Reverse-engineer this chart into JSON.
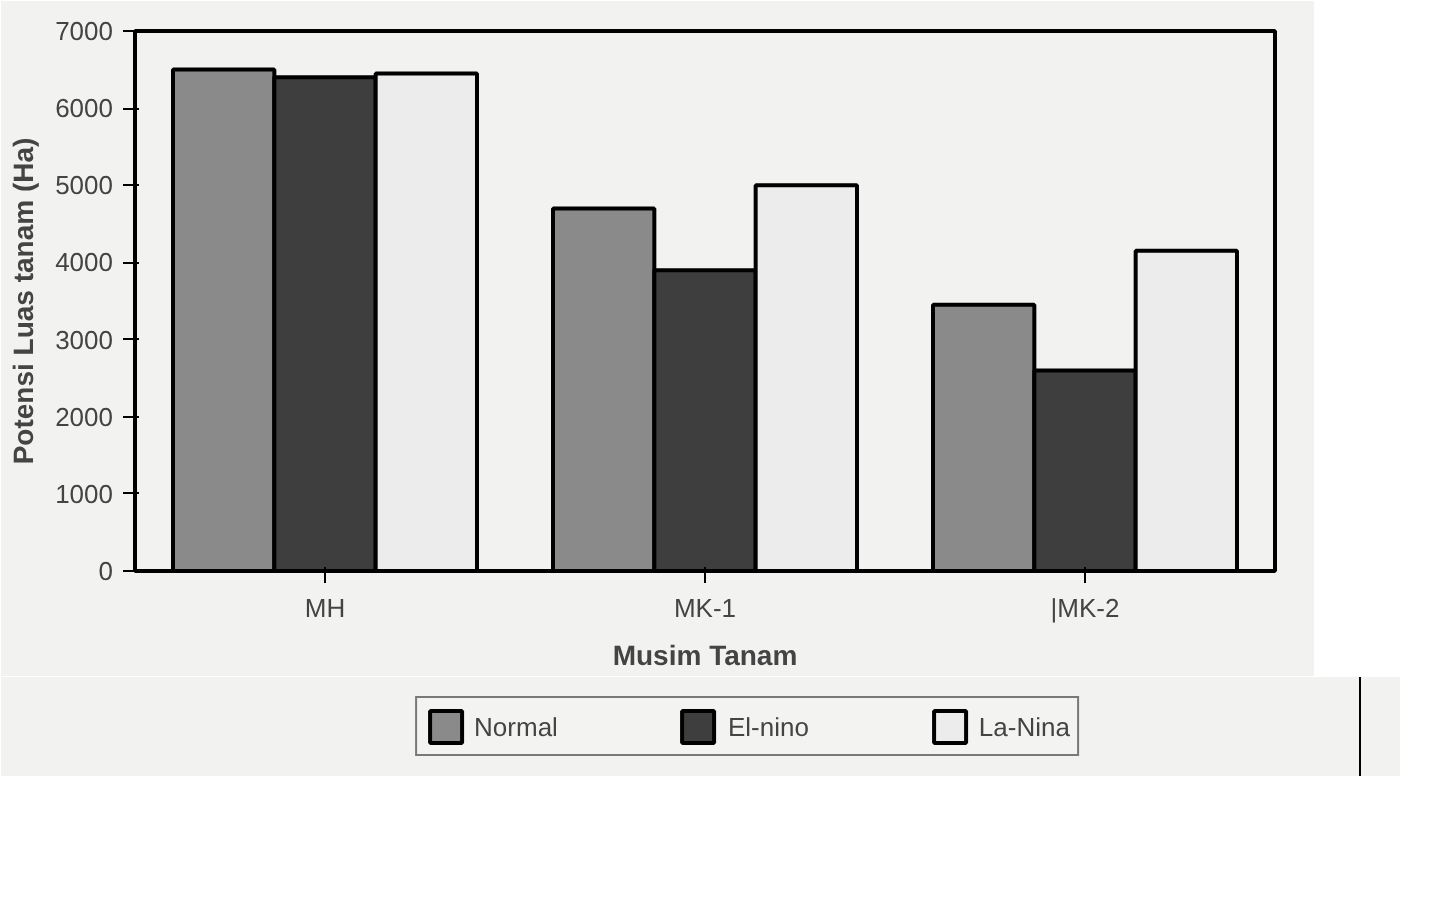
{
  "chart_data": {
    "type": "bar",
    "xlabel": "Musim Tanam",
    "ylabel": "Potensi Luas tanam (Ha)",
    "categories": [
      "MH",
      "MK-1",
      "|MK-2"
    ],
    "series": [
      {
        "name": "Normal",
        "color": "#8a8a8a",
        "values": [
          6500,
          4700,
          3450
        ]
      },
      {
        "name": "El-nino",
        "color": "#3e3e3e",
        "values": [
          6400,
          3900,
          2600
        ]
      },
      {
        "name": "La-Nina",
        "color": "#ececec",
        "values": [
          6450,
          5000,
          4150
        ]
      }
    ],
    "ylim": [
      0,
      7000
    ],
    "yticks": [
      0,
      1000,
      2000,
      3000,
      4000,
      5000,
      6000,
      7000
    ],
    "grid": false,
    "legend": "bottom"
  }
}
